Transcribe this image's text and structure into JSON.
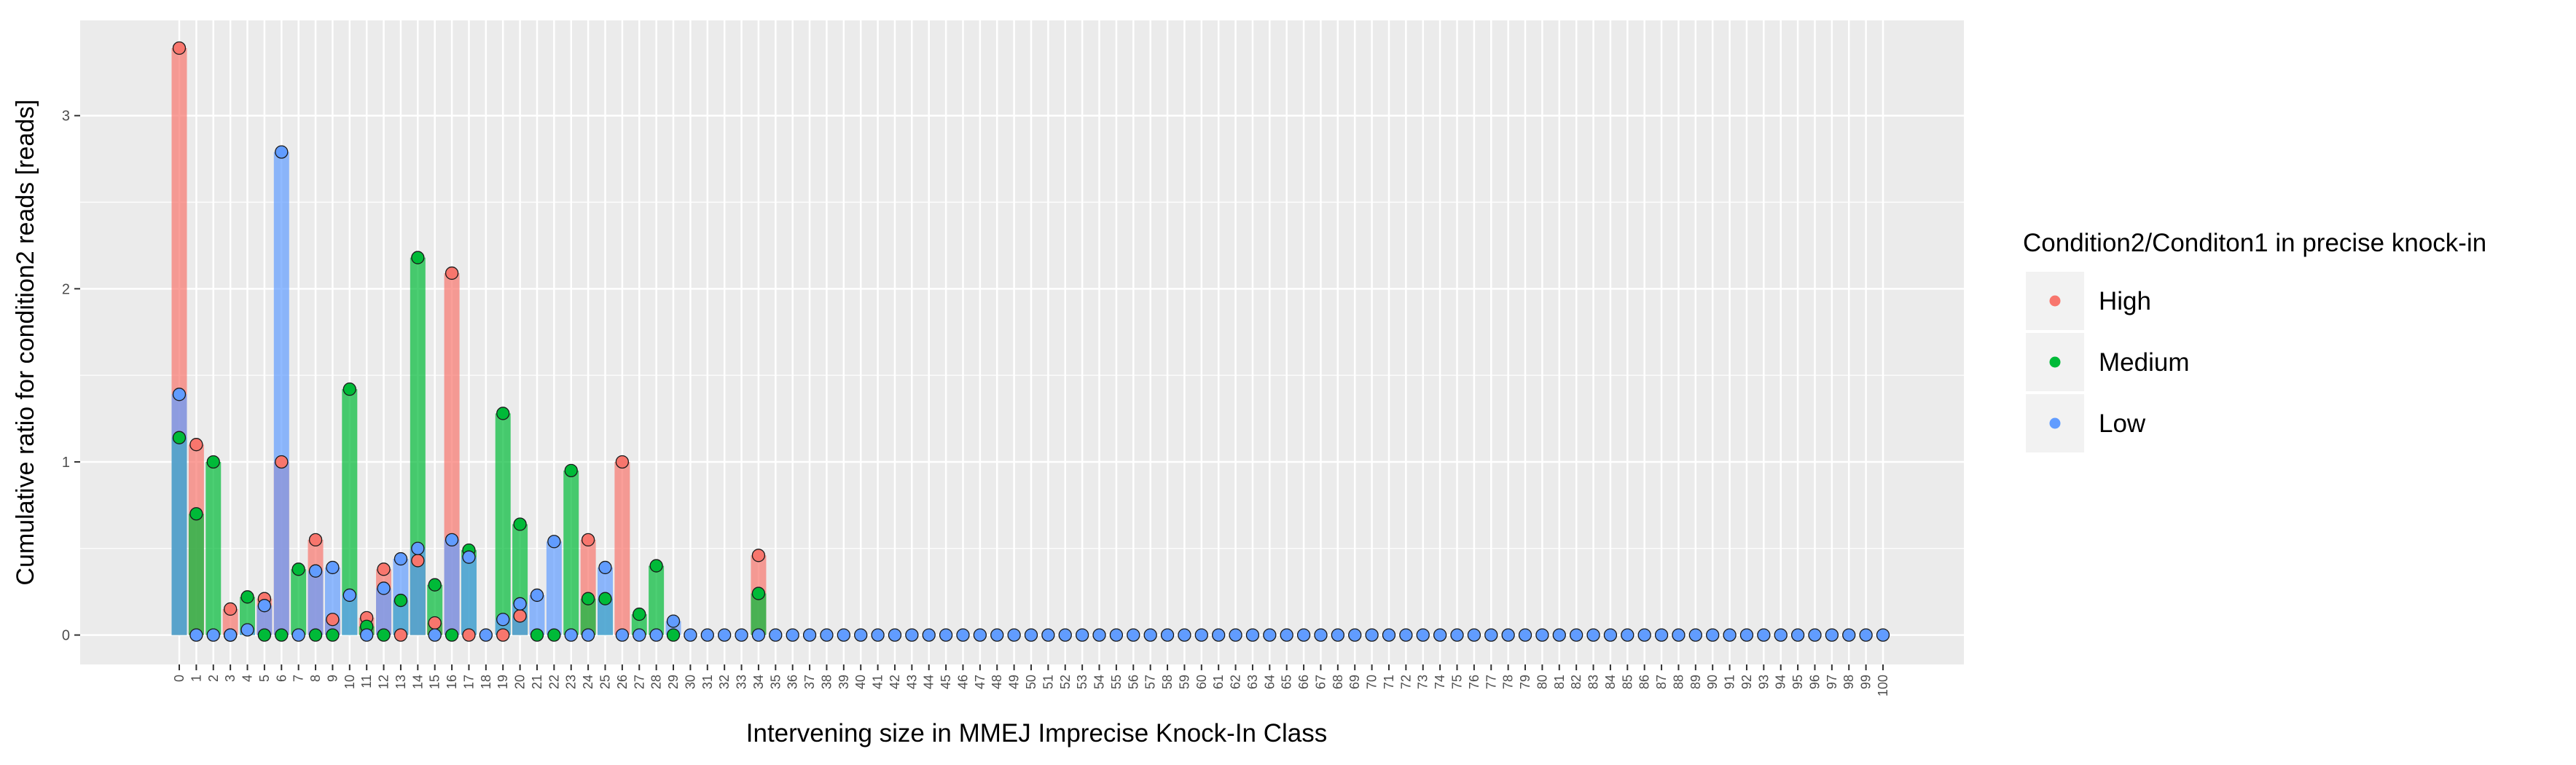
{
  "chart_data": {
    "type": "bar",
    "title": "",
    "xlabel": "Intervening size in MMEJ Imprecise Knock-In Class",
    "ylabel": "Cumulative ratio for condition2 reads [reads]",
    "x_ticks": [
      "0",
      "1",
      "2",
      "3",
      "4",
      "5",
      "6",
      "7",
      "8",
      "9",
      "10",
      "11",
      "12",
      "13",
      "14",
      "15",
      "16",
      "17",
      "18",
      "19",
      "20",
      "21",
      "22",
      "23",
      "24",
      "25",
      "26",
      "27",
      "28",
      "29",
      "30",
      "31",
      "32",
      "33",
      "34",
      "35",
      "36",
      "37",
      "38",
      "39",
      "40",
      "41",
      "42",
      "43",
      "44",
      "45",
      "46",
      "47",
      "48",
      "49",
      "50",
      "51",
      "52",
      "53",
      "54",
      "55",
      "56",
      "57",
      "58",
      "59",
      "60",
      "61",
      "62",
      "63",
      "64",
      "65",
      "66",
      "67",
      "68",
      "69",
      "70",
      "71",
      "72",
      "73",
      "74",
      "75",
      "76",
      "77",
      "78",
      "79",
      "80",
      "81",
      "82",
      "83",
      "84",
      "85",
      "86",
      "87",
      "88",
      "89",
      "90",
      "91",
      "92",
      "93",
      "94",
      "95",
      "96",
      "97",
      "98",
      "99",
      "100"
    ],
    "y_ticks": [
      "0",
      "1",
      "2",
      "3"
    ],
    "ylim": [
      -0.17,
      3.55
    ],
    "grid": true,
    "legend": {
      "title": "Condition2/Conditon1 in precise knock-in",
      "position": "right",
      "entries": [
        "High",
        "Medium",
        "Low"
      ]
    },
    "series": [
      {
        "name": "High",
        "color": "#F8766D",
        "points": [
          [
            0,
            3.39
          ],
          [
            1,
            1.1
          ],
          [
            3,
            0.15
          ],
          [
            5,
            0.21
          ],
          [
            6,
            1.0
          ],
          [
            8,
            0.55
          ],
          [
            9,
            0.09
          ],
          [
            11,
            0.1
          ],
          [
            12,
            0.38
          ],
          [
            13,
            0.0
          ],
          [
            14,
            0.43
          ],
          [
            15,
            0.07
          ],
          [
            16,
            2.09
          ],
          [
            17,
            0.0
          ],
          [
            19,
            0.0
          ],
          [
            20,
            0.11
          ],
          [
            24,
            0.55
          ],
          [
            26,
            1.0
          ],
          [
            34,
            0.46
          ]
        ]
      },
      {
        "name": "Medium",
        "color": "#00BA38",
        "points": [
          [
            0,
            1.14
          ],
          [
            1,
            0.7
          ],
          [
            2,
            1.0
          ],
          [
            3,
            0.0
          ],
          [
            4,
            0.22
          ],
          [
            5,
            0.0
          ],
          [
            6,
            0.0
          ],
          [
            7,
            0.38
          ],
          [
            8,
            0.0
          ],
          [
            9,
            0.0
          ],
          [
            10,
            1.42
          ],
          [
            11,
            0.05
          ],
          [
            12,
            0.0
          ],
          [
            13,
            0.2
          ],
          [
            14,
            2.18
          ],
          [
            15,
            0.29
          ],
          [
            16,
            0.0
          ],
          [
            17,
            0.49
          ],
          [
            19,
            1.28
          ],
          [
            20,
            0.64
          ],
          [
            21,
            0.0
          ],
          [
            22,
            0.0
          ],
          [
            23,
            0.95
          ],
          [
            24,
            0.21
          ],
          [
            25,
            0.21
          ],
          [
            27,
            0.12
          ],
          [
            28,
            0.4
          ],
          [
            29,
            0.0
          ],
          [
            34,
            0.24
          ]
        ]
      },
      {
        "name": "Low",
        "color": "#619CFF",
        "points": [
          [
            0,
            1.39
          ],
          [
            1,
            0.0
          ],
          [
            2,
            0.0
          ],
          [
            3,
            0.0
          ],
          [
            4,
            0.03
          ],
          [
            5,
            0.17
          ],
          [
            6,
            2.79
          ],
          [
            7,
            0.0
          ],
          [
            8,
            0.37
          ],
          [
            9,
            0.39
          ],
          [
            10,
            0.23
          ],
          [
            11,
            0.0
          ],
          [
            12,
            0.27
          ],
          [
            13,
            0.44
          ],
          [
            14,
            0.5
          ],
          [
            15,
            0.0
          ],
          [
            16,
            0.55
          ],
          [
            17,
            0.45
          ],
          [
            18,
            0.0
          ],
          [
            19,
            0.09
          ],
          [
            20,
            0.18
          ],
          [
            21,
            0.23
          ],
          [
            22,
            0.54
          ],
          [
            23,
            0.0
          ],
          [
            24,
            0.0
          ],
          [
            25,
            0.39
          ],
          [
            26,
            0.0
          ],
          [
            27,
            0.0
          ],
          [
            28,
            0.0
          ],
          [
            29,
            0.08
          ],
          [
            30,
            0.0
          ],
          [
            31,
            0.0
          ],
          [
            32,
            0.0
          ],
          [
            33,
            0.0
          ],
          [
            34,
            0.0
          ],
          [
            35,
            0.0
          ],
          [
            36,
            0.0
          ],
          [
            37,
            0.0
          ],
          [
            38,
            0.0
          ],
          [
            39,
            0.0
          ],
          [
            40,
            0.0
          ],
          [
            41,
            0.0
          ],
          [
            42,
            0.0
          ],
          [
            43,
            0.0
          ],
          [
            44,
            0.0
          ],
          [
            45,
            0.0
          ],
          [
            46,
            0.0
          ],
          [
            47,
            0.0
          ],
          [
            48,
            0.0
          ],
          [
            49,
            0.0
          ],
          [
            50,
            0.0
          ],
          [
            51,
            0.0
          ],
          [
            52,
            0.0
          ],
          [
            53,
            0.0
          ],
          [
            54,
            0.0
          ],
          [
            55,
            0.0
          ],
          [
            56,
            0.0
          ],
          [
            57,
            0.0
          ],
          [
            58,
            0.0
          ],
          [
            59,
            0.0
          ],
          [
            60,
            0.0
          ],
          [
            61,
            0.0
          ],
          [
            62,
            0.0
          ],
          [
            63,
            0.0
          ],
          [
            64,
            0.0
          ],
          [
            65,
            0.0
          ],
          [
            66,
            0.0
          ],
          [
            67,
            0.0
          ],
          [
            68,
            0.0
          ],
          [
            69,
            0.0
          ],
          [
            70,
            0.0
          ],
          [
            71,
            0.0
          ],
          [
            72,
            0.0
          ],
          [
            73,
            0.0
          ],
          [
            74,
            0.0
          ],
          [
            75,
            0.0
          ],
          [
            76,
            0.0
          ],
          [
            77,
            0.0
          ],
          [
            78,
            0.0
          ],
          [
            79,
            0.0
          ],
          [
            80,
            0.0
          ],
          [
            81,
            0.0
          ],
          [
            82,
            0.0
          ],
          [
            83,
            0.0
          ],
          [
            84,
            0.0
          ],
          [
            85,
            0.0
          ],
          [
            86,
            0.0
          ],
          [
            87,
            0.0
          ],
          [
            88,
            0.0
          ],
          [
            89,
            0.0
          ],
          [
            90,
            0.0
          ],
          [
            91,
            0.0
          ],
          [
            92,
            0.0
          ],
          [
            93,
            0.0
          ],
          [
            94,
            0.0
          ],
          [
            95,
            0.0
          ],
          [
            96,
            0.0
          ],
          [
            97,
            0.0
          ],
          [
            98,
            0.0
          ],
          [
            99,
            0.0
          ],
          [
            100,
            0.0
          ]
        ]
      }
    ]
  },
  "style": {
    "panel_background": "#EBEBEB",
    "grid_color": "#FFFFFF",
    "point_outline": "#1A1A1A",
    "bar_opacity": 0.7
  }
}
